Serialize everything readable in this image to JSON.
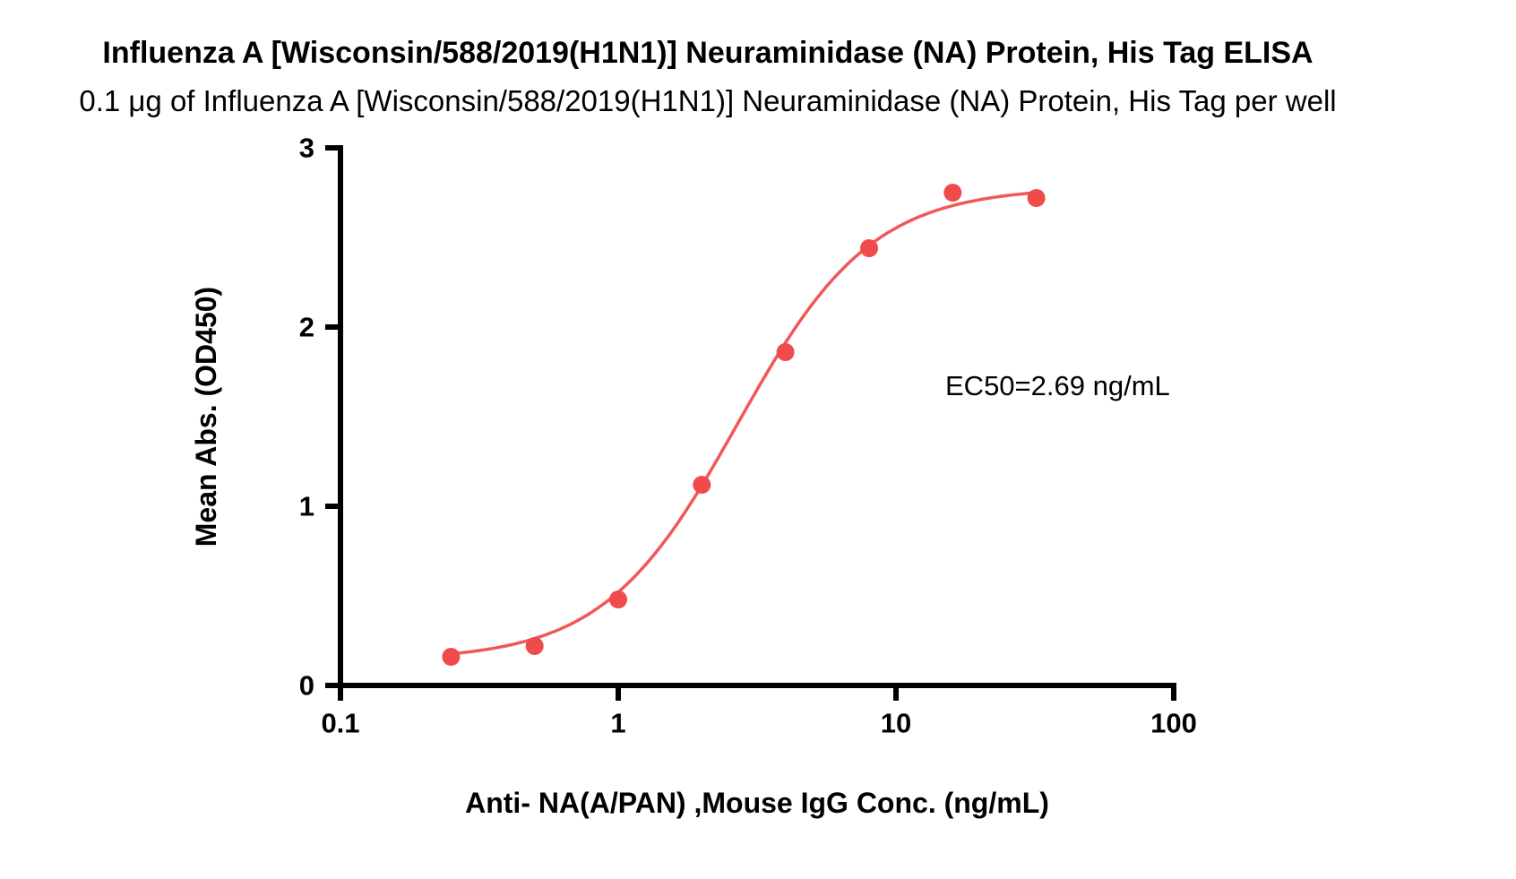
{
  "title": "Influenza A [Wisconsin/588/2019(H1N1)] Neuraminidase (NA) Protein, His Tag ELISA",
  "subtitle": "0.1 μg of Influenza A [Wisconsin/588/2019(H1N1)] Neuraminidase (NA) Protein, His Tag per well",
  "annotation": "EC50=2.69 ng/mL",
  "chart_data": {
    "type": "scatter",
    "subtype": "dose-response-curve",
    "x": [
      0.25,
      0.5,
      1,
      2,
      4,
      8,
      16,
      32
    ],
    "y": [
      0.16,
      0.22,
      0.48,
      1.12,
      1.86,
      2.44,
      2.75,
      2.72
    ],
    "title": "Influenza A [Wisconsin/588/2019(H1N1)] Neuraminidase (NA) Protein, His Tag ELISA",
    "xlabel": "Anti- NA(A/PAN) ,Mouse IgG Conc. (ng/mL)",
    "ylabel": "Mean Abs. (OD450)",
    "x_scale": "log",
    "xlim": [
      0.1,
      100
    ],
    "ylim": [
      0,
      3
    ],
    "x_ticks": [
      0.1,
      1,
      10,
      100
    ],
    "y_ticks": [
      0,
      1,
      2,
      3
    ],
    "ec50_ng_ml": 2.69,
    "fit": {
      "type": "4pl",
      "bottom": 0.14,
      "top": 2.78,
      "ec50": 2.69,
      "hill": 1.8
    },
    "legend": "none",
    "grid": false,
    "point_color": "#f04b4b",
    "line_color": "#f25757",
    "axis_color": "#000000"
  }
}
